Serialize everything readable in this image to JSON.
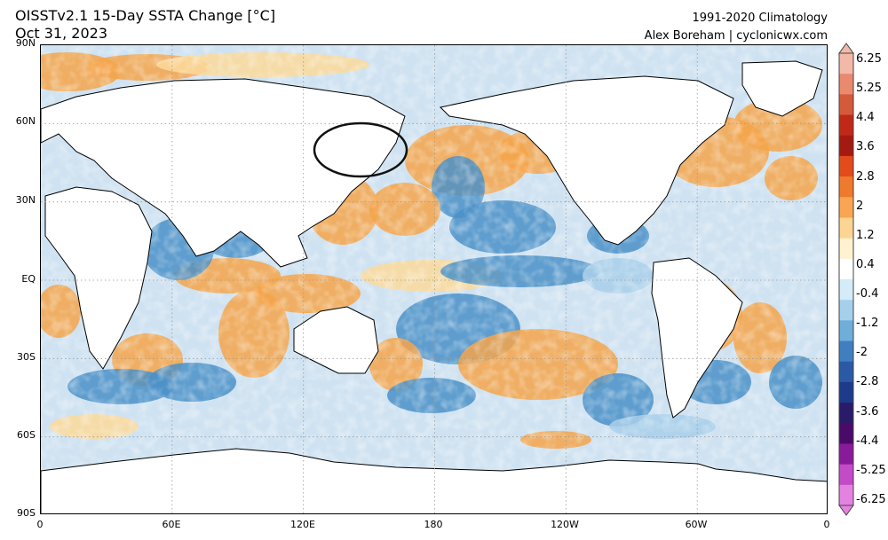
{
  "header": {
    "title_line1": "OISSTv2.1 15-Day SSTA Change [°C]",
    "title_line2": "Oct 31, 2023",
    "credit_line1": "1991-2020 Climatology",
    "credit_line2": "Alex Boreham | cyclonicwx.com"
  },
  "map": {
    "lat_labels": [
      "90N",
      "60N",
      "30N",
      "EQ",
      "30S",
      "60S",
      "90S"
    ],
    "lon_labels": [
      "0",
      "60E",
      "120E",
      "180",
      "120W",
      "60W",
      "0"
    ],
    "annotation": "circle around Sea of Okhotsk / Kuril region",
    "colors": {
      "warm": "#f5a54a",
      "warm_light": "#fbd99a",
      "cool": "#4a90c8",
      "cool_light": "#a8cfea",
      "land": "#ffffff",
      "coast": "#000000"
    }
  },
  "colorbar": {
    "labels": [
      "6.25",
      "5.25",
      "4.4",
      "3.6",
      "2.8",
      "2",
      "1.2",
      "0.4",
      "-0.4",
      "-1.2",
      "-2",
      "-2.8",
      "-3.6",
      "-4.4",
      "-5.25",
      "-6.25"
    ],
    "colors": [
      "#f3b9a8",
      "#e98a70",
      "#d45a3a",
      "#c02818",
      "#a51a10",
      "#e34a1c",
      "#f07a2c",
      "#f9a552",
      "#fcd592",
      "#fff2d0",
      "#ffffff",
      "#d4ebf8",
      "#a5d0ec",
      "#6eaed9",
      "#3f7fc0",
      "#2a5aa5",
      "#1e3a8a",
      "#2a1a6a",
      "#4a0a6a",
      "#8a1a9a",
      "#c44ac8",
      "#e482e2"
    ]
  }
}
